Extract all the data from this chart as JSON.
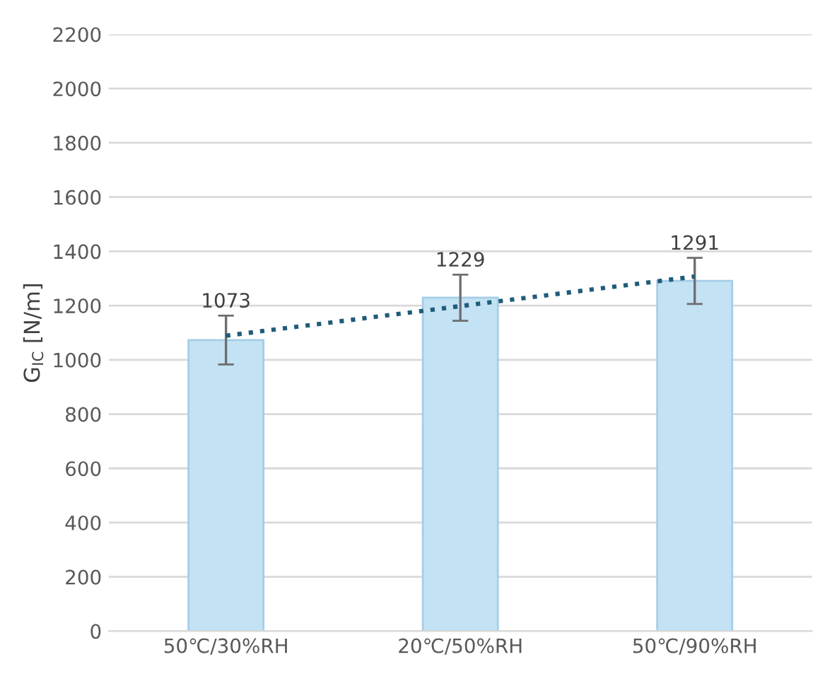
{
  "chart_data": {
    "type": "bar",
    "ylabel": "G$_{IC}$ [N/m]",
    "categories": [
      "50℃/30%RH",
      "20℃/50%RH",
      "50℃/90%RH"
    ],
    "series": [
      {
        "color": "#c3e2f4",
        "values": [
          1073,
          1229,
          1291
        ],
        "errors": [
          90,
          85,
          85
        ],
        "value_labels": [
          "1073",
          "1229",
          "1291"
        ]
      },
      {
        "type": "line",
        "color": "#1f5c7a",
        "line_style": "dotted",
        "values": [
          1089,
          1198,
          1307
        ]
      }
    ],
    "ylim": [
      0,
      2200
    ],
    "yticks": [
      0,
      200,
      400,
      600,
      800,
      1000,
      1200,
      1400,
      1600,
      1800,
      2000,
      2200
    ],
    "grid": "y"
  }
}
